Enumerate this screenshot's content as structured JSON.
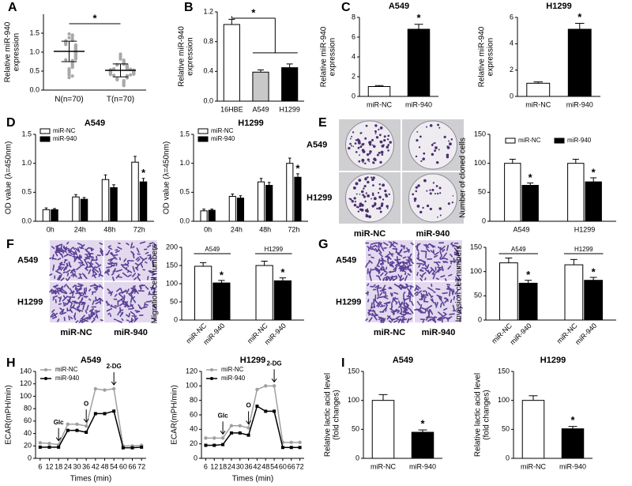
{
  "panel_labels": [
    "A",
    "B",
    "C",
    "D",
    "E",
    "F",
    "G",
    "H",
    "I"
  ],
  "images": [
    {
      "style": "colony",
      "rows": [
        "A549",
        "H1299"
      ],
      "cols": [
        "miR-NC",
        "miR-940"
      ]
    },
    {
      "style": "transwell",
      "rows": [
        "A549",
        "H1299"
      ],
      "cols": [
        "miR-NC",
        "miR-940"
      ]
    },
    {
      "style": "transwell",
      "rows": [
        "A549",
        "H1299"
      ],
      "cols": [
        "miR-NC",
        "miR-940"
      ]
    }
  ],
  "chart_data": [
    {
      "type": "strip",
      "ylabel": [
        "Relative miR-940",
        "expression"
      ],
      "categories": [
        "N(n=70)",
        "T(n=70)"
      ],
      "color": "#a8a8a8",
      "values": [
        [
          1.48,
          1.45,
          1.42,
          1.38,
          1.35,
          1.33,
          1.31,
          1.3,
          1.28,
          1.27,
          1.25,
          1.24,
          1.22,
          1.21,
          1.2,
          1.19,
          1.18,
          1.17,
          1.16,
          1.15,
          1.14,
          1.13,
          1.12,
          1.11,
          1.1,
          1.09,
          1.08,
          1.07,
          1.06,
          1.05,
          1.04,
          1.03,
          1.02,
          1.01,
          1.0,
          0.99,
          0.98,
          0.97,
          0.96,
          0.95,
          0.94,
          0.93,
          0.92,
          0.91,
          0.9,
          0.89,
          0.88,
          0.87,
          0.86,
          0.85,
          0.84,
          0.83,
          0.82,
          0.8,
          0.78,
          0.76,
          0.74,
          0.72,
          0.7,
          0.68,
          0.65,
          0.62,
          0.6,
          0.56,
          0.52,
          0.48,
          0.44,
          0.4,
          0.37,
          0.33
        ],
        [
          0.95,
          0.9,
          0.86,
          0.82,
          0.79,
          0.76,
          0.74,
          0.72,
          0.7,
          0.68,
          0.67,
          0.66,
          0.65,
          0.64,
          0.63,
          0.62,
          0.61,
          0.6,
          0.59,
          0.58,
          0.57,
          0.56,
          0.56,
          0.55,
          0.55,
          0.54,
          0.54,
          0.53,
          0.53,
          0.52,
          0.52,
          0.51,
          0.51,
          0.5,
          0.5,
          0.49,
          0.49,
          0.48,
          0.48,
          0.47,
          0.47,
          0.46,
          0.46,
          0.45,
          0.45,
          0.44,
          0.44,
          0.43,
          0.43,
          0.42,
          0.42,
          0.41,
          0.4,
          0.39,
          0.38,
          0.37,
          0.36,
          0.35,
          0.34,
          0.33,
          0.32,
          0.3,
          0.29,
          0.27,
          0.25,
          0.23,
          0.21,
          0.18,
          0.15,
          0.12
        ]
      ],
      "means": [
        1.02,
        0.52
      ],
      "sds": [
        0.27,
        0.17
      ],
      "ylim": [
        0,
        2.0
      ],
      "yticks": [
        {
          "value": 0,
          "label": "0.0"
        },
        0.5,
        {
          "value": 1,
          "label": "1.0"
        },
        1.5
      ],
      "bracket": {
        "text": "*",
        "from": 0,
        "to": 1
      }
    },
    {
      "type": "bar",
      "ylabel": [
        "Relative miR-940",
        "expression"
      ],
      "categories": [
        "16HBE",
        "A549",
        "H1299"
      ],
      "values": [
        1.03,
        0.39,
        0.45
      ],
      "errors": [
        0.07,
        0.03,
        0.05
      ],
      "colors": [
        "#ffffff",
        "#c8c8c8",
        "#000000"
      ],
      "ylim": [
        0,
        1.2
      ],
      "yticks": [
        {
          "value": 0,
          "label": "0.0"
        },
        0.4,
        0.8,
        1.2
      ],
      "bracket": {
        "text": "*",
        "from": 0,
        "to": [
          1,
          2
        ]
      }
    },
    {
      "type": "bar",
      "title": "A549",
      "ylabel": [
        "Relative miR-940",
        "expression"
      ],
      "categories": [
        "miR-NC",
        "miR-940"
      ],
      "values": [
        1,
        6.8
      ],
      "errors": [
        0.1,
        0.5
      ],
      "colors": [
        "#ffffff",
        "#000000"
      ],
      "ylim": [
        0,
        8
      ],
      "yticks": [
        0,
        2,
        4,
        6,
        8
      ],
      "stars": [
        {
          "text": "*",
          "index": 1
        }
      ]
    },
    {
      "type": "bar",
      "title": "H1299",
      "ylabel": [
        "Relative miR-940",
        "expression"
      ],
      "categories": [
        "miR-NC",
        "miR-940"
      ],
      "values": [
        1,
        5.1
      ],
      "errors": [
        0.1,
        0.45
      ],
      "colors": [
        "#ffffff",
        "#000000"
      ],
      "ylim": [
        0,
        6
      ],
      "yticks": [
        0,
        2,
        4,
        6
      ],
      "stars": [
        {
          "text": "*",
          "index": 1
        }
      ]
    },
    {
      "type": "grouped_bar",
      "title": "A549",
      "ylabel": [
        "OD value (λ=450nm)"
      ],
      "legend": "upper left",
      "categories": [
        "0h",
        "24h",
        "48h",
        "72h"
      ],
      "series": [
        {
          "name": "miR-NC",
          "color": "#ffffff",
          "values": [
            0.2,
            0.42,
            0.72,
            1.02
          ],
          "errors": [
            0.03,
            0.04,
            0.08,
            0.1
          ]
        },
        {
          "name": "miR-940",
          "color": "#000000",
          "values": [
            0.2,
            0.38,
            0.58,
            0.68
          ],
          "errors": [
            0.02,
            0.03,
            0.05,
            0.06
          ]
        }
      ],
      "ylim": [
        0,
        1.5
      ],
      "yticks": [
        {
          "value": 0,
          "label": "0.0"
        },
        0.5,
        {
          "value": 1,
          "label": "1.0"
        },
        1.5
      ],
      "stars": [
        {
          "text": "*",
          "series": 1,
          "index": 3
        }
      ]
    },
    {
      "type": "grouped_bar",
      "title": "H1299",
      "ylabel": [
        "OD value (λ=450nm)"
      ],
      "legend": "upper left",
      "categories": [
        "0h",
        "24h",
        "48h",
        "72h"
      ],
      "series": [
        {
          "name": "miR-NC",
          "color": "#ffffff",
          "values": [
            0.18,
            0.43,
            0.68,
            1.0
          ],
          "errors": [
            0.03,
            0.04,
            0.06,
            0.09
          ]
        },
        {
          "name": "miR-940",
          "color": "#000000",
          "values": [
            0.19,
            0.4,
            0.62,
            0.76
          ],
          "errors": [
            0.02,
            0.04,
            0.05,
            0.06
          ]
        }
      ],
      "ylim": [
        0,
        1.5
      ],
      "yticks": [
        {
          "value": 0,
          "label": "0.0"
        },
        0.5,
        {
          "value": 1,
          "label": "1.0"
        },
        1.5
      ],
      "stars": [
        {
          "text": "*",
          "series": 1,
          "index": 3
        }
      ]
    },
    {
      "type": "grouped_bar",
      "ylabel": [
        "Number of cloned cells"
      ],
      "legend": "upper center",
      "categories": [
        "A549",
        "H1299"
      ],
      "series": [
        {
          "name": "miR-NC",
          "color": "#ffffff",
          "values": [
            100,
            100
          ],
          "errors": [
            7,
            7
          ]
        },
        {
          "name": "miR-940",
          "color": "#000000",
          "values": [
            62,
            68
          ],
          "errors": [
            4,
            7
          ]
        }
      ],
      "ylim": [
        0,
        150
      ],
      "yticks": [
        0,
        50,
        100,
        150
      ],
      "stars": [
        {
          "text": "*",
          "series": 1,
          "index": 0
        },
        {
          "text": "*",
          "series": 1,
          "index": 1
        }
      ]
    },
    {
      "type": "grouped_bar",
      "ylabel": [
        "Migration cell numbers"
      ],
      "bar_labels": true,
      "categories": [
        "A549",
        "H1299"
      ],
      "series": [
        {
          "name": "miR-NC",
          "color": "#ffffff",
          "values": [
            148,
            150
          ],
          "errors": [
            10,
            12
          ]
        },
        {
          "name": "miR-940",
          "color": "#000000",
          "values": [
            102,
            108
          ],
          "errors": [
            7,
            8
          ]
        }
      ],
      "ylim": [
        0,
        200
      ],
      "yticks": [
        0,
        50,
        100,
        150,
        200
      ],
      "stars": [
        {
          "text": "*",
          "series": 1,
          "index": 0
        },
        {
          "text": "*",
          "series": 1,
          "index": 1
        }
      ]
    },
    {
      "type": "grouped_bar",
      "ylabel": [
        "Invasion cell numbers"
      ],
      "bar_labels": true,
      "categories": [
        "A549",
        "H1299"
      ],
      "series": [
        {
          "name": "miR-NC",
          "color": "#ffffff",
          "values": [
            118,
            114
          ],
          "errors": [
            10,
            11
          ]
        },
        {
          "name": "miR-940",
          "color": "#000000",
          "values": [
            76,
            82
          ],
          "errors": [
            6,
            6
          ]
        }
      ],
      "ylim": [
        0,
        150
      ],
      "yticks": [
        0,
        50,
        100,
        150
      ],
      "stars": [
        {
          "text": "*",
          "series": 1,
          "index": 0
        },
        {
          "text": "*",
          "series": 1,
          "index": 1
        }
      ]
    },
    {
      "type": "line",
      "title": "A549",
      "ylabel": [
        "ECAR(mPH/min)"
      ],
      "xlabel": "Times (min)",
      "legend": "upper left",
      "x": [
        6,
        12,
        18,
        24,
        30,
        36,
        42,
        48,
        54,
        60,
        66,
        72
      ],
      "series": [
        {
          "name": "miR-NC",
          "color": "#a0a0a0",
          "values": [
            25,
            24,
            22,
            55,
            55,
            52,
            112,
            110,
            112,
            20,
            20,
            21
          ]
        },
        {
          "name": "miR-940",
          "color": "#000000",
          "values": [
            18,
            18,
            18,
            45,
            45,
            42,
            72,
            72,
            76,
            17,
            17,
            18
          ]
        }
      ],
      "xlim": [
        3,
        75
      ],
      "xticks": [
        6,
        12,
        18,
        24,
        30,
        36,
        42,
        48,
        54,
        60,
        66,
        72
      ],
      "ylim": [
        0,
        140
      ],
      "yticks": [
        0,
        20,
        40,
        60,
        80,
        100,
        120,
        140
      ],
      "markers": [
        {
          "text": "Glc",
          "x": 18
        },
        {
          "text": "O",
          "x": 36
        },
        {
          "text": "2-DG",
          "x": 54
        }
      ]
    },
    {
      "type": "line",
      "title": "H1299",
      "ylabel": [
        "ECAR(mPH/min)"
      ],
      "xlabel": "Times (min)",
      "legend": "upper left",
      "x": [
        6,
        12,
        18,
        24,
        30,
        36,
        42,
        48,
        54,
        60,
        66,
        72
      ],
      "series": [
        {
          "name": "miR-NC",
          "color": "#a0a0a0",
          "values": [
            28,
            28,
            28,
            45,
            45,
            42,
            95,
            100,
            100,
            22,
            22,
            22
          ]
        },
        {
          "name": "miR-940",
          "color": "#000000",
          "values": [
            18,
            18,
            19,
            35,
            35,
            32,
            72,
            65,
            65,
            15,
            15,
            15
          ]
        }
      ],
      "xlim": [
        3,
        75
      ],
      "xticks": [
        6,
        12,
        18,
        24,
        30,
        36,
        42,
        48,
        54,
        60,
        66,
        72
      ],
      "ylim": [
        0,
        120
      ],
      "yticks": [
        0,
        20,
        40,
        60,
        80,
        100,
        120
      ],
      "markers": [
        {
          "text": "Glc",
          "x": 18
        },
        {
          "text": "O",
          "x": 36
        },
        {
          "text": "2-DG",
          "x": 54
        }
      ]
    },
    {
      "type": "bar",
      "title": "A549",
      "ylabel": [
        "Relative lactic acid level",
        "(fold changes)"
      ],
      "categories": [
        "miR-NC",
        "miR-940"
      ],
      "values": [
        100,
        45
      ],
      "errors": [
        10,
        4
      ],
      "colors": [
        "#ffffff",
        "#000000"
      ],
      "ylim": [
        0,
        150
      ],
      "yticks": [
        0,
        50,
        100,
        150
      ],
      "stars": [
        {
          "text": "*",
          "index": 1
        }
      ]
    },
    {
      "type": "bar",
      "title": "H1299",
      "ylabel": [
        "Relative lactic acid level",
        "(fold changes)"
      ],
      "categories": [
        "miR-NC",
        "miR-940"
      ],
      "values": [
        100,
        51
      ],
      "errors": [
        8,
        4
      ],
      "colors": [
        "#ffffff",
        "#000000"
      ],
      "ylim": [
        0,
        150
      ],
      "yticks": [
        0,
        50,
        100,
        150
      ],
      "stars": [
        {
          "text": "*",
          "index": 1
        }
      ]
    }
  ]
}
